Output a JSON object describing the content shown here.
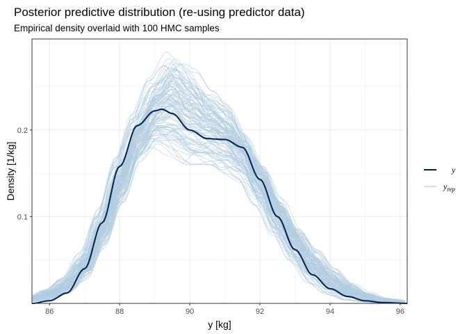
{
  "chart_data": {
    "type": "line",
    "title": "Posterior predictive distribution (re-using predictor data)",
    "subtitle": "Empirical density overlaid with 100 HMC samples",
    "xlabel": "y [kg]",
    "ylabel": "Density [1/kg]",
    "xlim": [
      85.5,
      96.2
    ],
    "ylim": [
      0,
      0.305
    ],
    "x_ticks": [
      86,
      88,
      90,
      92,
      94,
      96
    ],
    "x_tick_labels": [
      "86",
      "88",
      "90",
      "92",
      "94",
      "96"
    ],
    "y_ticks": [
      0.1,
      0.2
    ],
    "y_tick_labels": [
      "0.1",
      "0.2"
    ],
    "grid": true,
    "legend_position": "right",
    "legend": [
      {
        "label": "y",
        "subscript": "",
        "color": "#011f4b"
      },
      {
        "label": "y",
        "subscript": "rep",
        "color": "#b3cde0"
      }
    ],
    "n_replicates": 100,
    "series": [
      {
        "name": "y",
        "color": "#011f4b",
        "x": [
          85.5,
          86.0,
          86.5,
          87.0,
          87.5,
          88.0,
          88.5,
          89.0,
          89.2,
          89.5,
          90.0,
          90.5,
          91.0,
          91.5,
          92.0,
          92.5,
          93.0,
          93.5,
          94.0,
          94.5,
          95.0,
          95.5,
          96.2
        ],
        "values": [
          0.0,
          0.003,
          0.012,
          0.04,
          0.093,
          0.158,
          0.205,
          0.222,
          0.224,
          0.219,
          0.2,
          0.19,
          0.189,
          0.18,
          0.143,
          0.1,
          0.062,
          0.033,
          0.017,
          0.008,
          0.003,
          0.001,
          0.0
        ]
      }
    ],
    "replicate_band": {
      "name": "y_rep",
      "color": "#b3cde0",
      "x": [
        85.5,
        86.0,
        86.5,
        87.0,
        87.5,
        88.0,
        88.5,
        89.0,
        89.5,
        90.0,
        90.5,
        91.0,
        91.5,
        92.0,
        92.5,
        93.0,
        93.5,
        94.0,
        94.5,
        95.0,
        95.5,
        96.2
      ],
      "lower": [
        0.002,
        0.004,
        0.01,
        0.025,
        0.06,
        0.11,
        0.16,
        0.18,
        0.17,
        0.16,
        0.16,
        0.15,
        0.14,
        0.11,
        0.075,
        0.045,
        0.022,
        0.01,
        0.004,
        0.001,
        0.0,
        0.0
      ],
      "upper": [
        0.008,
        0.016,
        0.03,
        0.06,
        0.11,
        0.17,
        0.22,
        0.26,
        0.29,
        0.27,
        0.245,
        0.23,
        0.2,
        0.165,
        0.125,
        0.09,
        0.062,
        0.04,
        0.024,
        0.013,
        0.006,
        0.003
      ]
    }
  }
}
